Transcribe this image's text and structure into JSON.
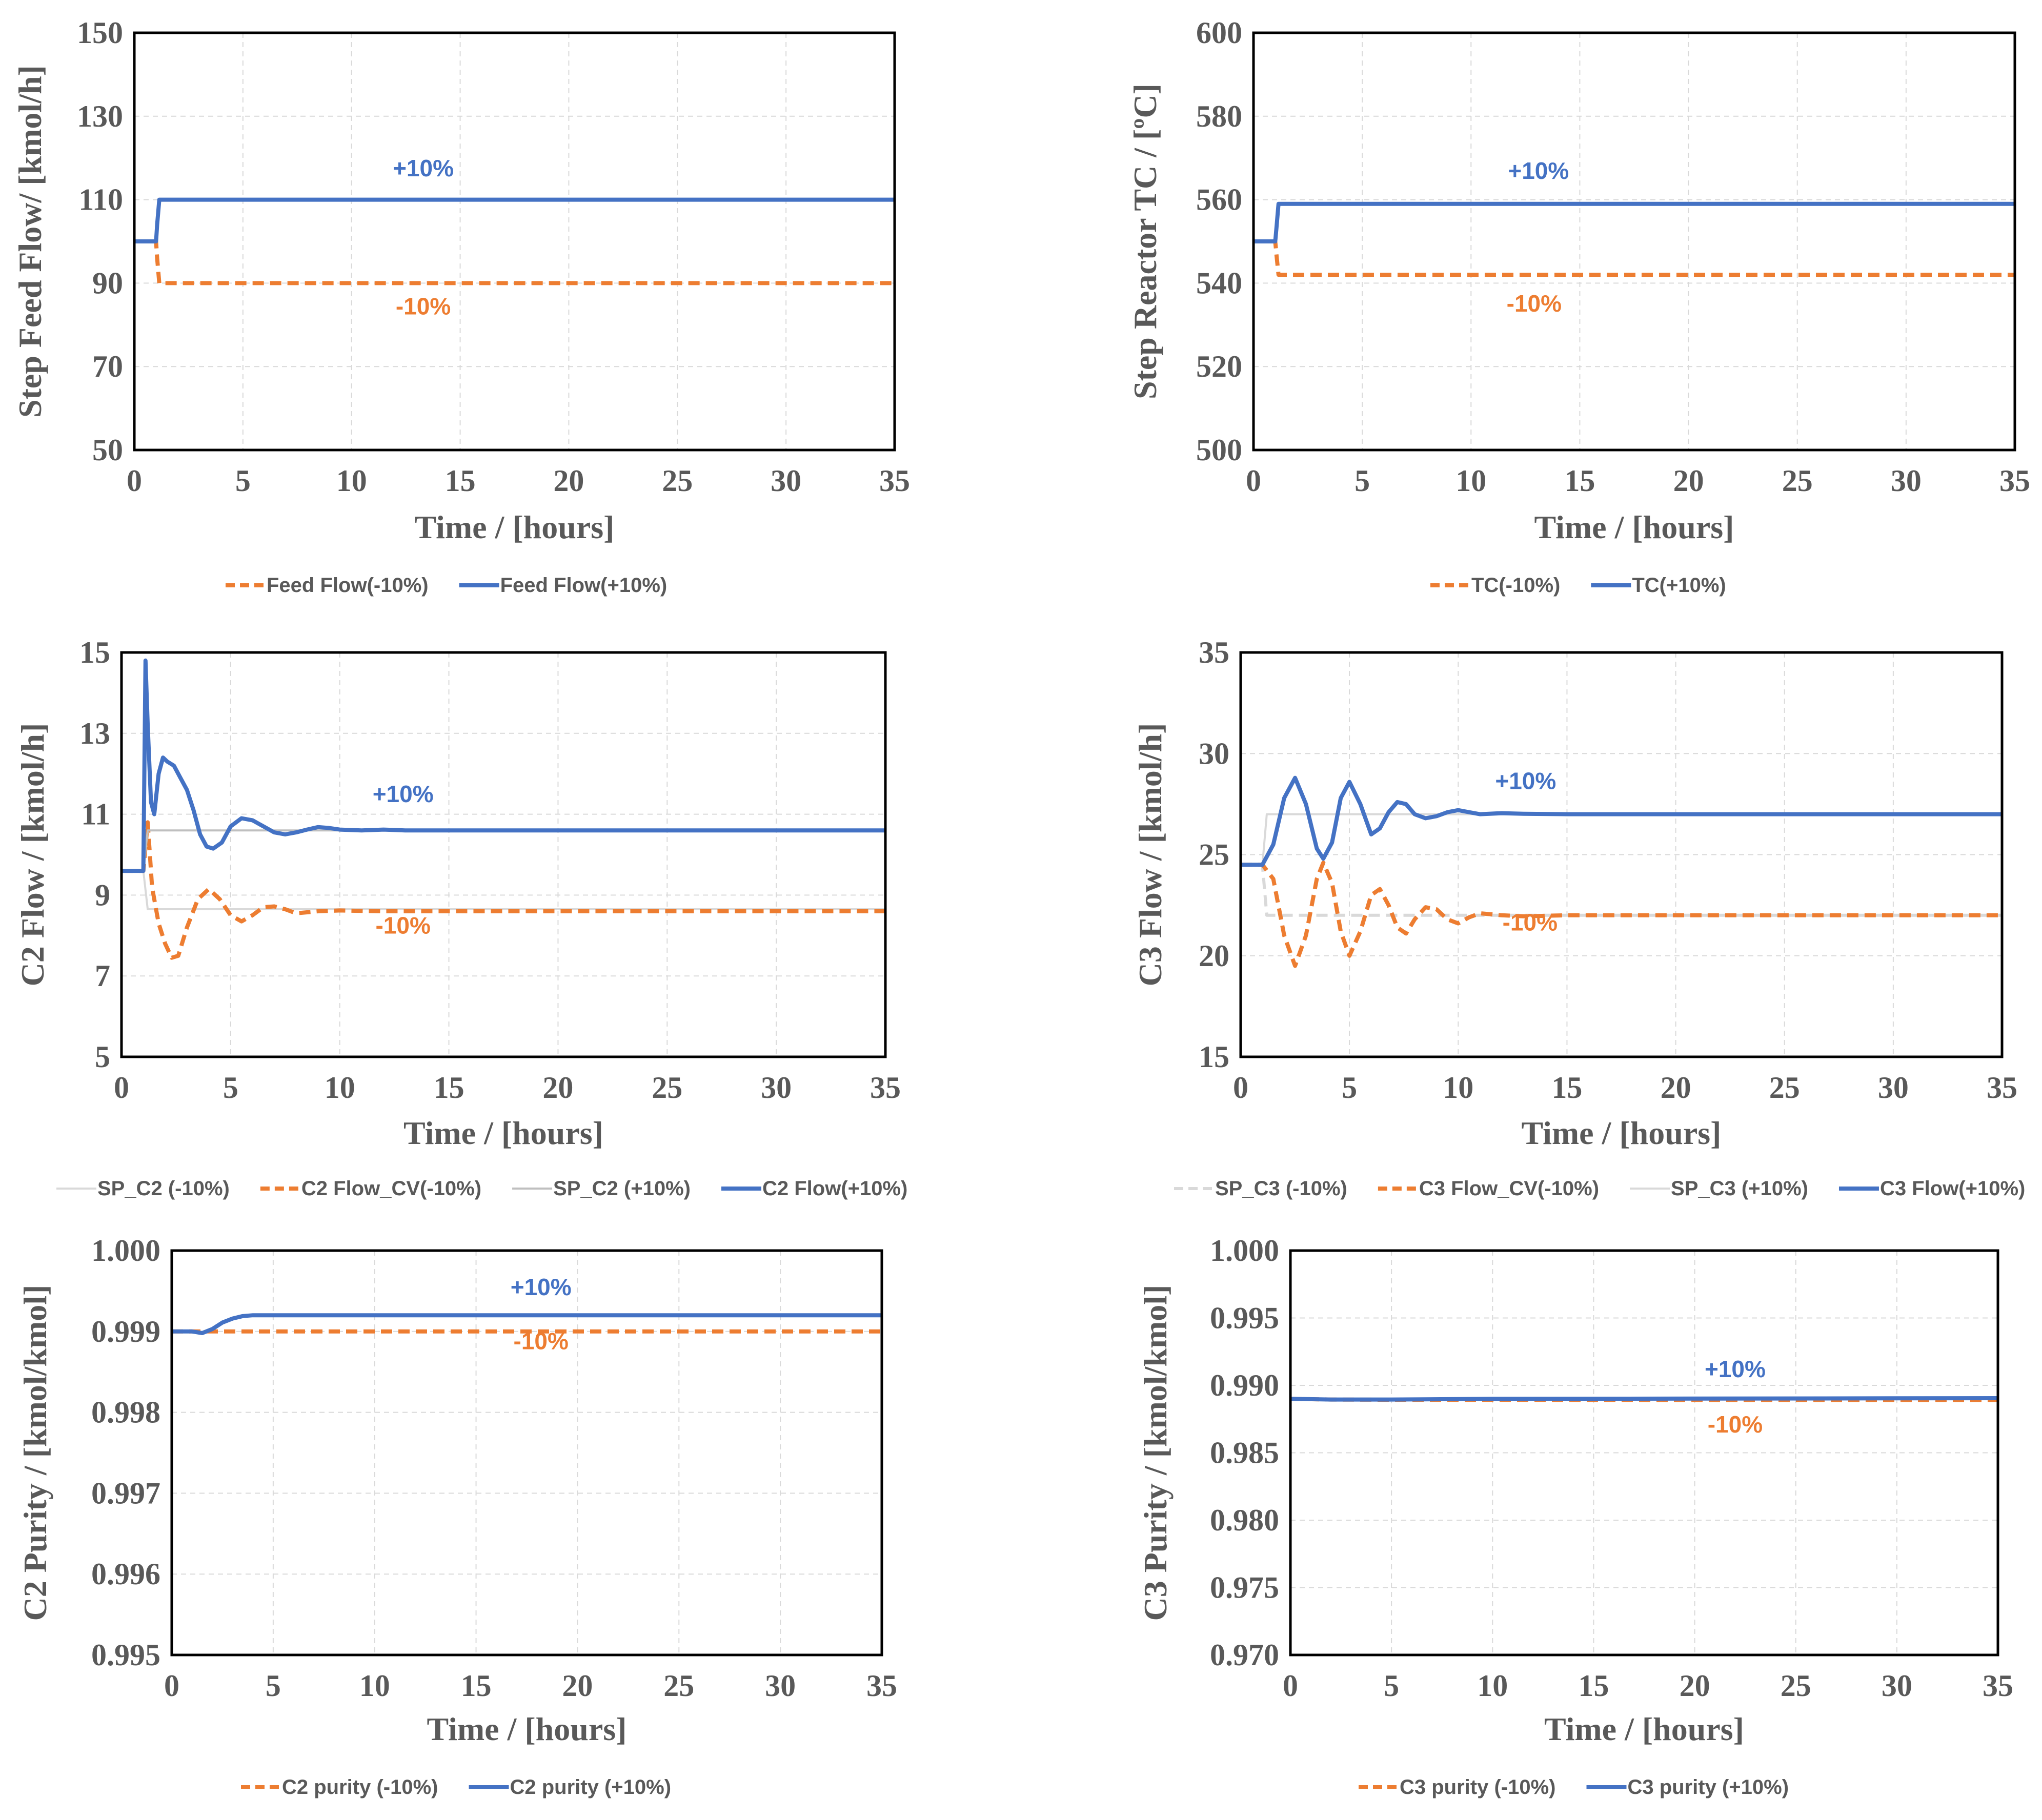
{
  "colors": {
    "orange": "#ed7d31",
    "blue": "#4472c4",
    "sp_gray": "#bfbfbf",
    "sp_gray_light": "#d9d9d9",
    "text_gray": "#595959"
  },
  "chart_data": [
    {
      "id": "feed",
      "type": "line",
      "ylabel": "Step Feed Flow/ [kmol/h]",
      "xlabel": "Time / [hours]",
      "xlim": [
        0,
        35
      ],
      "ylim": [
        50,
        150
      ],
      "xticks": [
        "0",
        "5",
        "10",
        "15",
        "20",
        "25",
        "30",
        "35"
      ],
      "yticks": [
        "50",
        "70",
        "90",
        "110",
        "130",
        "150"
      ],
      "annotations": [
        {
          "text": "+10%",
          "color": "blue",
          "x": 13.3,
          "y": 115.6
        },
        {
          "text": "-10%",
          "color": "orange",
          "x": 13.3,
          "y": 82.5
        }
      ],
      "series": [
        {
          "name": "Feed Flow(-10%)",
          "style": "dash",
          "color": "orange",
          "x": [
            0,
            1,
            1.05,
            1.15,
            35
          ],
          "y": [
            100,
            100,
            96,
            90,
            90
          ]
        },
        {
          "name": "Feed Flow(+10%)",
          "style": "solid",
          "color": "blue",
          "x": [
            0,
            1,
            1.05,
            1.15,
            35
          ],
          "y": [
            100,
            100,
            104,
            110,
            110
          ]
        }
      ]
    },
    {
      "id": "tc",
      "type": "line",
      "ylabel": "Step Reactor TC / [ºC]",
      "xlabel": "Time / [hours]",
      "xlim": [
        0,
        35
      ],
      "ylim": [
        500,
        600
      ],
      "xticks": [
        "0",
        "5",
        "10",
        "15",
        "20",
        "25",
        "30",
        "35"
      ],
      "yticks": [
        "500",
        "520",
        "540",
        "560",
        "580",
        "600"
      ],
      "annotations": [
        {
          "text": "+10%",
          "color": "blue",
          "x": 13.1,
          "y": 565
        },
        {
          "text": "-10%",
          "color": "orange",
          "x": 12.9,
          "y": 533.2
        }
      ],
      "series": [
        {
          "name": "TC(-10%)",
          "style": "dash",
          "color": "orange",
          "x": [
            0,
            1,
            1.05,
            1.15,
            35
          ],
          "y": [
            550,
            550,
            547,
            542,
            542
          ]
        },
        {
          "name": "TC(+10%)",
          "style": "solid",
          "color": "blue",
          "x": [
            0,
            1,
            1.05,
            1.15,
            35
          ],
          "y": [
            550,
            550,
            553,
            559,
            559
          ]
        }
      ]
    },
    {
      "id": "c2flow",
      "type": "line",
      "ylabel": "C2 Flow / [kmol/h]",
      "xlabel": "Time / [hours]",
      "xlim": [
        0,
        35
      ],
      "ylim": [
        5,
        15
      ],
      "xticks": [
        "0",
        "5",
        "10",
        "15",
        "20",
        "25",
        "30",
        "35"
      ],
      "yticks": [
        "5",
        "7",
        "9",
        "11",
        "13",
        "15"
      ],
      "annotations": [
        {
          "text": "+10%",
          "color": "blue",
          "x": 12.9,
          "y": 11.3
        },
        {
          "text": "-10%",
          "color": "orange",
          "x": 12.9,
          "y": 8.05
        }
      ],
      "series": [
        {
          "name": "SP_C2 (-10%)",
          "style": "solid-thin",
          "color": "sp_gray_light",
          "x": [
            0,
            1,
            1.2,
            9,
            35
          ],
          "y": [
            9.6,
            9.6,
            8.65,
            8.65,
            8.65
          ]
        },
        {
          "name": "C2 Flow_CV(-10%)",
          "style": "dash",
          "color": "orange",
          "x": [
            0,
            1,
            1.2,
            1.4,
            1.7,
            2.0,
            2.3,
            2.6,
            3.0,
            3.5,
            4.0,
            4.5,
            5.0,
            5.5,
            6.0,
            6.5,
            7.0,
            7.5,
            8.0,
            9.0,
            10,
            12,
            15,
            35
          ],
          "y": [
            9.6,
            9.6,
            10.8,
            9.2,
            8.3,
            7.8,
            7.45,
            7.5,
            8.2,
            8.9,
            9.15,
            8.9,
            8.5,
            8.35,
            8.5,
            8.7,
            8.72,
            8.65,
            8.55,
            8.6,
            8.62,
            8.6,
            8.6,
            8.6
          ]
        },
        {
          "name": "SP_C2 (+10%)",
          "style": "solid-thin",
          "color": "sp_gray",
          "x": [
            0,
            1,
            1.2,
            9,
            35
          ],
          "y": [
            9.6,
            9.6,
            10.6,
            10.6,
            10.6
          ]
        },
        {
          "name": "C2 Flow(+10%)",
          "style": "solid",
          "color": "blue",
          "x": [
            0,
            1,
            1.1,
            1.2,
            1.35,
            1.5,
            1.7,
            1.9,
            2.1,
            2.4,
            2.7,
            3.0,
            3.3,
            3.6,
            3.9,
            4.2,
            4.6,
            5.0,
            5.5,
            6.0,
            6.5,
            7.0,
            7.5,
            8.0,
            8.5,
            9.0,
            9.5,
            10,
            11,
            12,
            13,
            15,
            35
          ],
          "y": [
            9.6,
            9.6,
            14.8,
            13.2,
            11.3,
            11.0,
            12.0,
            12.4,
            12.3,
            12.2,
            11.9,
            11.6,
            11.1,
            10.5,
            10.2,
            10.15,
            10.3,
            10.7,
            10.9,
            10.85,
            10.7,
            10.55,
            10.5,
            10.55,
            10.62,
            10.68,
            10.66,
            10.62,
            10.6,
            10.62,
            10.6,
            10.6,
            10.6
          ]
        }
      ]
    },
    {
      "id": "c3flow",
      "type": "line",
      "ylabel": "C3 Flow / [kmol/h]",
      "xlabel": "Time / [hours]",
      "xlim": [
        0,
        35
      ],
      "ylim": [
        15,
        35
      ],
      "xticks": [
        "0",
        "5",
        "10",
        "15",
        "20",
        "25",
        "30",
        "35"
      ],
      "yticks": [
        "15",
        "20",
        "25",
        "30",
        "35"
      ],
      "annotations": [
        {
          "text": "+10%",
          "color": "blue",
          "x": 13.1,
          "y": 28.25
        },
        {
          "text": "-10%",
          "color": "orange",
          "x": 13.3,
          "y": 21.25
        }
      ],
      "series": [
        {
          "name": "SP_C3 (-10%)",
          "style": "dash-thin",
          "color": "sp_gray_light",
          "x": [
            0,
            1,
            1.2,
            9,
            35
          ],
          "y": [
            24.5,
            24.5,
            22.0,
            22.0,
            22.0
          ]
        },
        {
          "name": "C3 Flow_CV(-10%)",
          "style": "dash",
          "color": "orange",
          "x": [
            0,
            1.0,
            1.5,
            2.0,
            2.5,
            3.0,
            3.5,
            3.8,
            4.2,
            4.6,
            5.0,
            5.5,
            6.0,
            6.4,
            6.8,
            7.2,
            7.6,
            8.0,
            8.5,
            9.0,
            9.5,
            10,
            10.5,
            11,
            12,
            13,
            15,
            35
          ],
          "y": [
            24.5,
            24.5,
            23.8,
            21.0,
            19.5,
            21.0,
            23.8,
            24.6,
            23.6,
            21.2,
            20.0,
            21.2,
            23.0,
            23.3,
            22.5,
            21.4,
            21.1,
            21.8,
            22.4,
            22.3,
            21.8,
            21.6,
            21.9,
            22.1,
            22.0,
            21.95,
            22.0,
            22.0
          ]
        },
        {
          "name": "SP_C3 (+10%)",
          "style": "solid-thin",
          "color": "sp_gray_light",
          "x": [
            0,
            1,
            1.2,
            9,
            35
          ],
          "y": [
            24.5,
            24.5,
            27.0,
            27.0,
            27.0
          ]
        },
        {
          "name": "C3 Flow(+10%)",
          "style": "solid",
          "color": "blue",
          "x": [
            0,
            1.0,
            1.5,
            2.0,
            2.5,
            3.0,
            3.5,
            3.8,
            4.2,
            4.6,
            5.0,
            5.5,
            6.0,
            6.4,
            6.8,
            7.2,
            7.6,
            8.0,
            8.5,
            9.0,
            9.5,
            10,
            10.5,
            11,
            12,
            13,
            15,
            35
          ],
          "y": [
            24.5,
            24.5,
            25.5,
            27.8,
            28.8,
            27.5,
            25.3,
            24.8,
            25.6,
            27.8,
            28.6,
            27.5,
            26.0,
            26.3,
            27.1,
            27.6,
            27.5,
            27.0,
            26.8,
            26.9,
            27.1,
            27.2,
            27.1,
            27.0,
            27.05,
            27.02,
            27.0,
            27.0
          ]
        }
      ]
    },
    {
      "id": "c2purity",
      "type": "line",
      "ylabel": "C2 Purity / [kmol/kmol]",
      "xlabel": "Time / [hours]",
      "xlim": [
        0,
        35
      ],
      "ylim": [
        0.995,
        1.0
      ],
      "xticks": [
        "0",
        "5",
        "10",
        "15",
        "20",
        "25",
        "30",
        "35"
      ],
      "yticks": [
        "0.995",
        "0.996",
        "0.997",
        "0.998",
        "0.999",
        "1.000"
      ],
      "annotations": [
        {
          "text": "+10%",
          "color": "blue",
          "x": 18.2,
          "y": 0.99945
        },
        {
          "text": "-10%",
          "color": "orange",
          "x": 18.2,
          "y": 0.99878
        }
      ],
      "series": [
        {
          "name": "C2 purity (-10%)",
          "style": "dash",
          "color": "orange",
          "x": [
            0,
            35
          ],
          "y": [
            0.999,
            0.999
          ]
        },
        {
          "name": "C2 purity (+10%)",
          "style": "solid",
          "color": "blue",
          "x": [
            0,
            1.0,
            1.5,
            2.0,
            2.5,
            3.0,
            3.5,
            4.0,
            5.0,
            35
          ],
          "y": [
            0.999,
            0.999,
            0.99898,
            0.99903,
            0.99911,
            0.99916,
            0.99919,
            0.9992,
            0.9992,
            0.9992
          ]
        }
      ]
    },
    {
      "id": "c3purity",
      "type": "line",
      "ylabel": "C3 Purity / [kmol/kmol]",
      "xlabel": "Time / [hours]",
      "xlim": [
        0,
        35
      ],
      "ylim": [
        0.97,
        1.0
      ],
      "xticks": [
        "0",
        "5",
        "10",
        "15",
        "20",
        "25",
        "30",
        "35"
      ],
      "yticks": [
        "0.970",
        "0.975",
        "0.980",
        "0.985",
        "0.990",
        "0.995",
        "1.000"
      ],
      "annotations": [
        {
          "text": "+10%",
          "color": "blue",
          "x": 22.0,
          "y": 0.9906
        },
        {
          "text": "-10%",
          "color": "orange",
          "x": 22.0,
          "y": 0.9865
        }
      ],
      "series": [
        {
          "name": "C3 purity (-10%)",
          "style": "dash",
          "color": "orange",
          "x": [
            0,
            2,
            5,
            10,
            20,
            35
          ],
          "y": [
            0.989,
            0.98895,
            0.98893,
            0.98893,
            0.98892,
            0.98892
          ]
        },
        {
          "name": "C3 purity (+10%)",
          "style": "solid",
          "color": "blue",
          "x": [
            0,
            2,
            5,
            10,
            20,
            35
          ],
          "y": [
            0.989,
            0.98895,
            0.98895,
            0.989,
            0.98902,
            0.98905
          ]
        }
      ]
    }
  ]
}
